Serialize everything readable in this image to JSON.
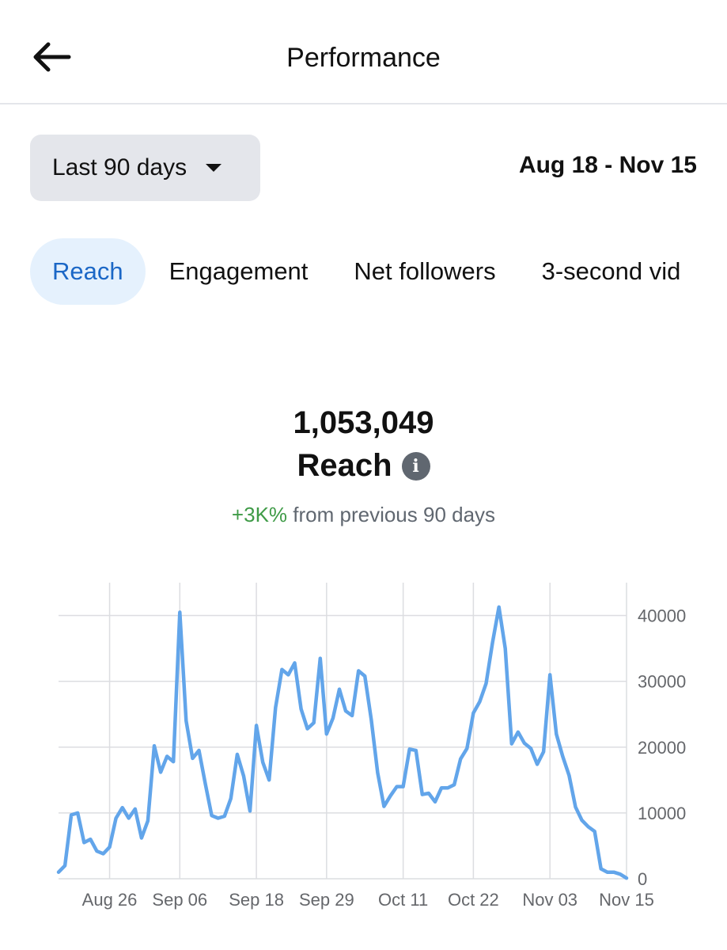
{
  "header": {
    "title": "Performance",
    "back_icon": "arrow-left-icon"
  },
  "range": {
    "label": "Last 90 days",
    "dates": "Aug 18 - Nov 15"
  },
  "tabs": [
    {
      "label": "Reach",
      "active": true
    },
    {
      "label": "Engagement",
      "active": false
    },
    {
      "label": "Net followers",
      "active": false
    },
    {
      "label": "3-second vid",
      "active": false
    }
  ],
  "metric": {
    "value": "1,053,049",
    "label": "Reach",
    "change_pct": "+3K%",
    "change_text": "from previous 90 days"
  },
  "colors": {
    "line": "#62a5ea",
    "positive": "#3f9b47",
    "active_tab_bg": "#e5f1fd",
    "active_tab_text": "#1b67c6"
  },
  "chart_data": {
    "type": "line",
    "title": "",
    "xlabel": "",
    "ylabel": "",
    "y_axis_side": "right",
    "grid": true,
    "ylim": [
      0,
      45000
    ],
    "yticks": [
      0,
      10000,
      20000,
      30000,
      40000
    ],
    "x_tick_labels": [
      {
        "label": "Aug 26",
        "day": 8
      },
      {
        "label": "Sep 06",
        "day": 19
      },
      {
        "label": "Sep 18",
        "day": 31
      },
      {
        "label": "Sep 29",
        "day": 42
      },
      {
        "label": "Oct 11",
        "day": 54
      },
      {
        "label": "Oct 22",
        "day": 65
      },
      {
        "label": "Nov 03",
        "day": 77
      },
      {
        "label": "Nov 15",
        "day": 89
      }
    ],
    "series": [
      {
        "values": [
          1000,
          2000,
          9700,
          10000,
          5500,
          6000,
          4200,
          3800,
          4800,
          9200,
          10800,
          9200,
          10600,
          6200,
          8800,
          20200,
          16200,
          18600,
          17800,
          40500,
          24000,
          18300,
          19500,
          14400,
          9600,
          9200,
          9500,
          12200,
          18900,
          15600,
          10300,
          23300,
          17700,
          15000,
          26000,
          31800,
          31000,
          32800,
          25800,
          22800,
          23700,
          33500,
          22000,
          24400,
          28800,
          25500,
          24800,
          31600,
          30800,
          24200,
          16100,
          11000,
          12600,
          14000,
          14000,
          19700,
          19500,
          12800,
          13000,
          11700,
          13800,
          13800,
          14300,
          18200,
          19800,
          25200,
          26900,
          29700,
          35900,
          41300,
          35000,
          20500,
          22300,
          20600,
          19800,
          17400,
          19300,
          31000,
          22000,
          18600,
          15700,
          10900,
          8900,
          7900,
          7200,
          1500,
          1000,
          1000,
          700,
          100
        ]
      }
    ]
  }
}
